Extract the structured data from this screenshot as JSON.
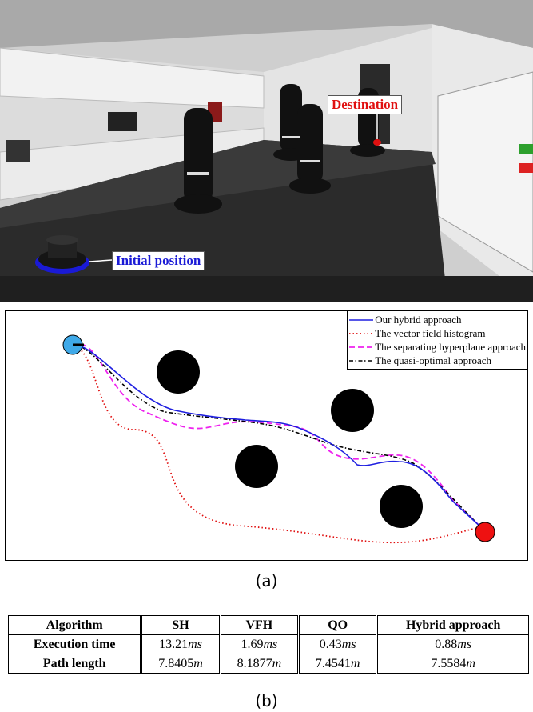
{
  "photo": {
    "destination_label": "Destination",
    "initial_label": "Initial position",
    "colors": {
      "destination": "#e01010",
      "initial": "#1a1ad6"
    }
  },
  "plot": {
    "legend": [
      {
        "label": "Our hybrid approach",
        "color": "#1f1fe0",
        "dash": "solid"
      },
      {
        "label": "The vector field histogram",
        "color": "#e01010",
        "dash": "dotted"
      },
      {
        "label": "The separating hyperplane approach",
        "color": "#ee22ee",
        "dash": "dashed"
      },
      {
        "label": "The quasi-optimal approach",
        "color": "#000000",
        "dash": "dashdot"
      }
    ],
    "start_color": "#3fa9e8",
    "goal_color": "#ee1111"
  },
  "caption_a": "(a)",
  "caption_b": "(b)",
  "table": {
    "headers": [
      "Algorithm",
      "SH",
      "VFH",
      "QO",
      "Hybrid approach"
    ],
    "rows": [
      {
        "label": "Execution time",
        "cells": [
          {
            "num": "13.21",
            "unit": "ms"
          },
          {
            "num": "1.69",
            "unit": "ms"
          },
          {
            "num": "0.43",
            "unit": "ms"
          },
          {
            "num": "0.88",
            "unit": "ms"
          }
        ]
      },
      {
        "label": "Path length",
        "cells": [
          {
            "num": "7.8405",
            "unit": "m"
          },
          {
            "num": "8.1877",
            "unit": "m"
          },
          {
            "num": "7.4541",
            "unit": "m"
          },
          {
            "num": "7.5584",
            "unit": "m"
          }
        ]
      }
    ]
  }
}
